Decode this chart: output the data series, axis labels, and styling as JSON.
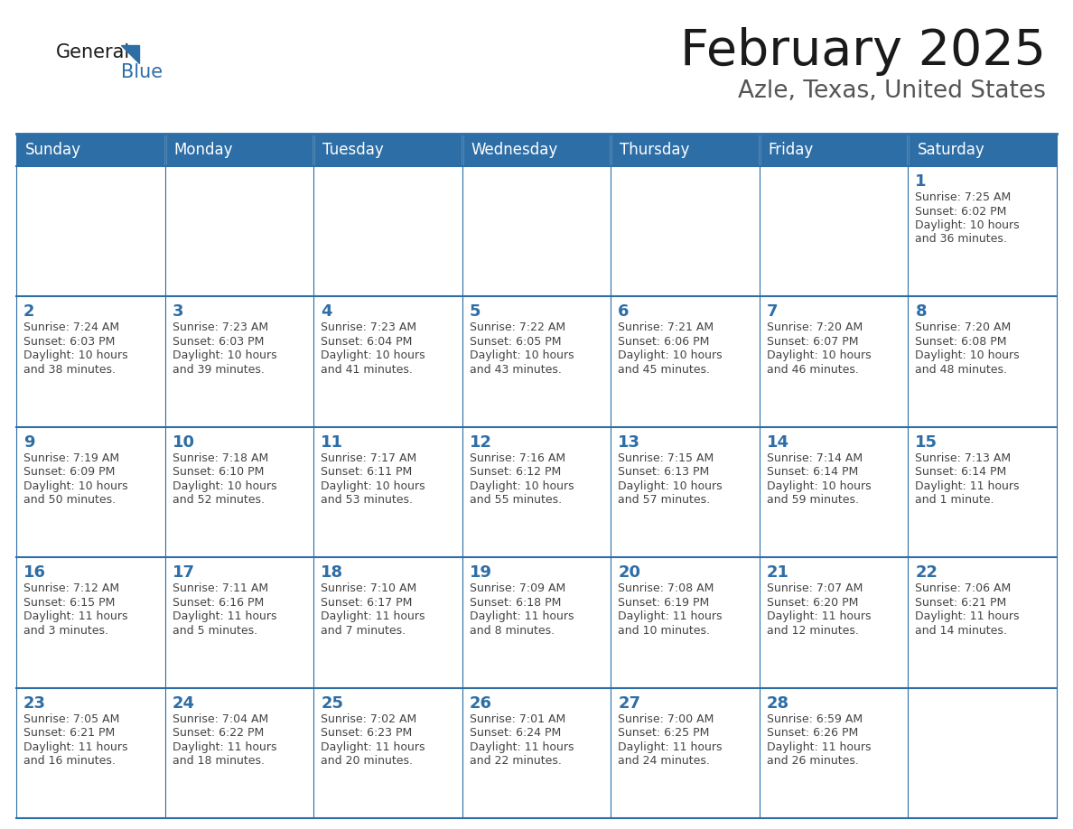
{
  "title": "February 2025",
  "subtitle": "Azle, Texas, United States",
  "days_of_week": [
    "Sunday",
    "Monday",
    "Tuesday",
    "Wednesday",
    "Thursday",
    "Friday",
    "Saturday"
  ],
  "header_bg": "#2E6EA6",
  "header_text": "#FFFFFF",
  "cell_bg": "#FFFFFF",
  "border_color": "#2E6EA6",
  "day_num_color": "#2E6EA6",
  "text_color": "#444444",
  "title_color": "#1a1a1a",
  "calendar_data": [
    [
      null,
      null,
      null,
      null,
      null,
      null,
      {
        "day": 1,
        "sunrise": "7:25 AM",
        "sunset": "6:02 PM",
        "daylight": "10 hours",
        "daylight2": "and 36 minutes."
      }
    ],
    [
      {
        "day": 2,
        "sunrise": "7:24 AM",
        "sunset": "6:03 PM",
        "daylight": "10 hours",
        "daylight2": "and 38 minutes."
      },
      {
        "day": 3,
        "sunrise": "7:23 AM",
        "sunset": "6:03 PM",
        "daylight": "10 hours",
        "daylight2": "and 39 minutes."
      },
      {
        "day": 4,
        "sunrise": "7:23 AM",
        "sunset": "6:04 PM",
        "daylight": "10 hours",
        "daylight2": "and 41 minutes."
      },
      {
        "day": 5,
        "sunrise": "7:22 AM",
        "sunset": "6:05 PM",
        "daylight": "10 hours",
        "daylight2": "and 43 minutes."
      },
      {
        "day": 6,
        "sunrise": "7:21 AM",
        "sunset": "6:06 PM",
        "daylight": "10 hours",
        "daylight2": "and 45 minutes."
      },
      {
        "day": 7,
        "sunrise": "7:20 AM",
        "sunset": "6:07 PM",
        "daylight": "10 hours",
        "daylight2": "and 46 minutes."
      },
      {
        "day": 8,
        "sunrise": "7:20 AM",
        "sunset": "6:08 PM",
        "daylight": "10 hours",
        "daylight2": "and 48 minutes."
      }
    ],
    [
      {
        "day": 9,
        "sunrise": "7:19 AM",
        "sunset": "6:09 PM",
        "daylight": "10 hours",
        "daylight2": "and 50 minutes."
      },
      {
        "day": 10,
        "sunrise": "7:18 AM",
        "sunset": "6:10 PM",
        "daylight": "10 hours",
        "daylight2": "and 52 minutes."
      },
      {
        "day": 11,
        "sunrise": "7:17 AM",
        "sunset": "6:11 PM",
        "daylight": "10 hours",
        "daylight2": "and 53 minutes."
      },
      {
        "day": 12,
        "sunrise": "7:16 AM",
        "sunset": "6:12 PM",
        "daylight": "10 hours",
        "daylight2": "and 55 minutes."
      },
      {
        "day": 13,
        "sunrise": "7:15 AM",
        "sunset": "6:13 PM",
        "daylight": "10 hours",
        "daylight2": "and 57 minutes."
      },
      {
        "day": 14,
        "sunrise": "7:14 AM",
        "sunset": "6:14 PM",
        "daylight": "10 hours",
        "daylight2": "and 59 minutes."
      },
      {
        "day": 15,
        "sunrise": "7:13 AM",
        "sunset": "6:14 PM",
        "daylight": "11 hours",
        "daylight2": "and 1 minute."
      }
    ],
    [
      {
        "day": 16,
        "sunrise": "7:12 AM",
        "sunset": "6:15 PM",
        "daylight": "11 hours",
        "daylight2": "and 3 minutes."
      },
      {
        "day": 17,
        "sunrise": "7:11 AM",
        "sunset": "6:16 PM",
        "daylight": "11 hours",
        "daylight2": "and 5 minutes."
      },
      {
        "day": 18,
        "sunrise": "7:10 AM",
        "sunset": "6:17 PM",
        "daylight": "11 hours",
        "daylight2": "and 7 minutes."
      },
      {
        "day": 19,
        "sunrise": "7:09 AM",
        "sunset": "6:18 PM",
        "daylight": "11 hours",
        "daylight2": "and 8 minutes."
      },
      {
        "day": 20,
        "sunrise": "7:08 AM",
        "sunset": "6:19 PM",
        "daylight": "11 hours",
        "daylight2": "and 10 minutes."
      },
      {
        "day": 21,
        "sunrise": "7:07 AM",
        "sunset": "6:20 PM",
        "daylight": "11 hours",
        "daylight2": "and 12 minutes."
      },
      {
        "day": 22,
        "sunrise": "7:06 AM",
        "sunset": "6:21 PM",
        "daylight": "11 hours",
        "daylight2": "and 14 minutes."
      }
    ],
    [
      {
        "day": 23,
        "sunrise": "7:05 AM",
        "sunset": "6:21 PM",
        "daylight": "11 hours",
        "daylight2": "and 16 minutes."
      },
      {
        "day": 24,
        "sunrise": "7:04 AM",
        "sunset": "6:22 PM",
        "daylight": "11 hours",
        "daylight2": "and 18 minutes."
      },
      {
        "day": 25,
        "sunrise": "7:02 AM",
        "sunset": "6:23 PM",
        "daylight": "11 hours",
        "daylight2": "and 20 minutes."
      },
      {
        "day": 26,
        "sunrise": "7:01 AM",
        "sunset": "6:24 PM",
        "daylight": "11 hours",
        "daylight2": "and 22 minutes."
      },
      {
        "day": 27,
        "sunrise": "7:00 AM",
        "sunset": "6:25 PM",
        "daylight": "11 hours",
        "daylight2": "and 24 minutes."
      },
      {
        "day": 28,
        "sunrise": "6:59 AM",
        "sunset": "6:26 PM",
        "daylight": "11 hours",
        "daylight2": "and 26 minutes."
      },
      null
    ]
  ],
  "figsize": [
    11.88,
    9.18
  ],
  "dpi": 100
}
